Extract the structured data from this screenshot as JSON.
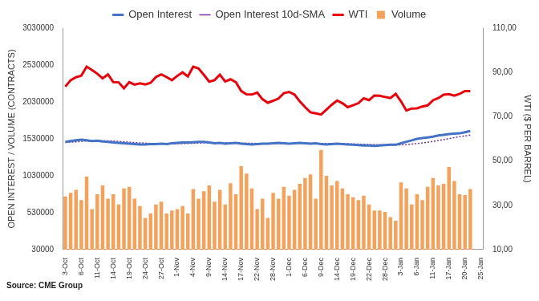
{
  "chart_data": {
    "type": "bar",
    "source": "Source: CME Group",
    "legend": "top",
    "grid": false,
    "y_label": "OPEN INTEREST / VOLUME (CONTRACTS)",
    "y2_label": "WTI ($ PER BARREL)",
    "ylim": [
      30000,
      3030000
    ],
    "yticks": [
      30000,
      530000,
      1030000,
      1530000,
      2030000,
      2530000,
      3030000
    ],
    "y2lim": [
      10,
      110
    ],
    "y2ticks": [
      {
        "value": 10,
        "label": "10,00"
      },
      {
        "value": 30,
        "label": "30,00"
      },
      {
        "value": 50,
        "label": "50,00"
      },
      {
        "value": 70,
        "label": "70,00"
      },
      {
        "value": 90,
        "label": "90,00"
      },
      {
        "value": 110,
        "label": "110,00"
      }
    ],
    "categories": [
      "3-Oct",
      null,
      null,
      "6-Oct",
      null,
      null,
      "11-Oct",
      null,
      null,
      "14-Oct",
      null,
      null,
      "19-Oct",
      null,
      null,
      "24-Oct",
      null,
      null,
      "27-Oct",
      null,
      null,
      "1-Nov",
      null,
      null,
      "4-Nov",
      null,
      null,
      "9-Nov",
      null,
      null,
      "14-Nov",
      null,
      null,
      "17-Nov",
      null,
      null,
      "22-Nov",
      null,
      null,
      "28-Nov",
      null,
      null,
      "1-Dec",
      null,
      null,
      "6-Dec",
      null,
      null,
      "9-Dec",
      null,
      null,
      "14-Dec",
      null,
      null,
      "19-Dec",
      null,
      null,
      "22-Dec",
      null,
      null,
      "28-Dec",
      null,
      null,
      "3-Jan",
      null,
      null,
      "6-Jan",
      null,
      null,
      "11-Jan",
      null,
      null,
      "17-Jan",
      null,
      null,
      "20-Jan",
      null,
      null,
      "25-Jan"
    ],
    "series": [
      {
        "name": "Volume",
        "type": "bar",
        "color": "#f4a25b",
        "values": [
          750000,
          800000,
          840000,
          700000,
          1020000,
          580000,
          780000,
          900000,
          720000,
          780000,
          640000,
          860000,
          880000,
          720000,
          620000,
          460000,
          520000,
          640000,
          680000,
          520000,
          560000,
          580000,
          620000,
          520000,
          850000,
          720000,
          820000,
          900000,
          680000,
          840000,
          640000,
          930000,
          780000,
          1160000,
          1060000,
          860000,
          580000,
          720000,
          460000,
          800000,
          720000,
          880000,
          760000,
          840000,
          920000,
          1000000,
          1050000,
          720000,
          1380000,
          1030000,
          900000,
          960000,
          860000,
          780000,
          740000,
          700000,
          760000,
          640000,
          560000,
          560000,
          540000,
          470000,
          420000,
          940000,
          860000,
          640000,
          780000,
          700000,
          880000,
          1000000,
          900000,
          920000,
          1150000,
          960000,
          780000,
          770000,
          850000,
          null,
          null
        ]
      },
      {
        "name": "Open Interest",
        "type": "line",
        "color": "#4472c4",
        "line_style": "solid",
        "values": [
          1490000,
          1500000,
          1510000,
          1520000,
          1510000,
          1500000,
          1505000,
          1495000,
          1490000,
          1480000,
          1475000,
          1470000,
          1465000,
          1460000,
          1455000,
          1455000,
          1460000,
          1460000,
          1465000,
          1460000,
          1470000,
          1475000,
          1480000,
          1480000,
          1485000,
          1490000,
          1490000,
          1480000,
          1470000,
          1475000,
          1465000,
          1470000,
          1475000,
          1465000,
          1460000,
          1455000,
          1460000,
          1465000,
          1465000,
          1470000,
          1475000,
          1470000,
          1465000,
          1470000,
          1475000,
          1470000,
          1465000,
          1470000,
          1460000,
          1455000,
          1460000,
          1465000,
          1460000,
          1455000,
          1450000,
          1445000,
          1440000,
          1440000,
          1435000,
          1440000,
          1445000,
          1450000,
          1450000,
          1470000,
          1490000,
          1510000,
          1530000,
          1540000,
          1550000,
          1560000,
          1575000,
          1585000,
          1595000,
          1600000,
          1605000,
          1620000,
          1635000,
          null,
          null
        ]
      },
      {
        "name": "Open Interest 10d-SMA",
        "type": "line",
        "color": "#7030a0",
        "line_style": "dotted",
        "values": [
          1480000,
          1485000,
          1490000,
          1495000,
          1500000,
          1502000,
          1504000,
          1505000,
          1503000,
          1500000,
          1496000,
          1490000,
          1485000,
          1480000,
          1476000,
          1472000,
          1468000,
          1466000,
          1465000,
          1463000,
          1462000,
          1463000,
          1465000,
          1467000,
          1470000,
          1473000,
          1476000,
          1478000,
          1479000,
          1479000,
          1478000,
          1477000,
          1476000,
          1474000,
          1472000,
          1470000,
          1468000,
          1467000,
          1466000,
          1465000,
          1466000,
          1467000,
          1467000,
          1468000,
          1469000,
          1469000,
          1469000,
          1469000,
          1468000,
          1467000,
          1466000,
          1465000,
          1464000,
          1462000,
          1460000,
          1458000,
          1456000,
          1454000,
          1452000,
          1450000,
          1448000,
          1447000,
          1447000,
          1449000,
          1453000,
          1459000,
          1467000,
          1475000,
          1485000,
          1495000,
          1507000,
          1520000,
          1533000,
          1547000,
          1559000,
          1570000,
          1581000,
          null,
          null
        ]
      },
      {
        "name": "WTI",
        "type": "line",
        "color": "#e8000b",
        "line_style": "solid",
        "axis": "y2",
        "values": [
          83.6,
          86.5,
          87.8,
          88.5,
          92.6,
          91.1,
          89.4,
          87.3,
          89.1,
          85.6,
          85.5,
          82.8,
          85.6,
          84.5,
          85.1,
          84.6,
          85.3,
          87.9,
          89.1,
          87.9,
          86.5,
          88.4,
          90.0,
          88.2,
          92.6,
          91.8,
          88.9,
          85.8,
          86.5,
          89.0,
          85.9,
          86.9,
          85.6,
          81.6,
          80.1,
          80.0,
          80.9,
          77.9,
          76.3,
          77.2,
          78.2,
          80.6,
          81.2,
          80.0,
          76.9,
          74.3,
          72.0,
          71.5,
          71.0,
          73.2,
          75.4,
          77.3,
          76.1,
          74.3,
          75.2,
          76.1,
          78.3,
          77.5,
          79.6,
          79.5,
          78.9,
          78.4,
          80.3,
          76.9,
          72.8,
          73.7,
          73.8,
          74.6,
          75.1,
          77.4,
          78.4,
          79.9,
          80.2,
          79.5,
          80.3,
          81.6,
          81.6,
          null,
          null
        ]
      }
    ]
  }
}
